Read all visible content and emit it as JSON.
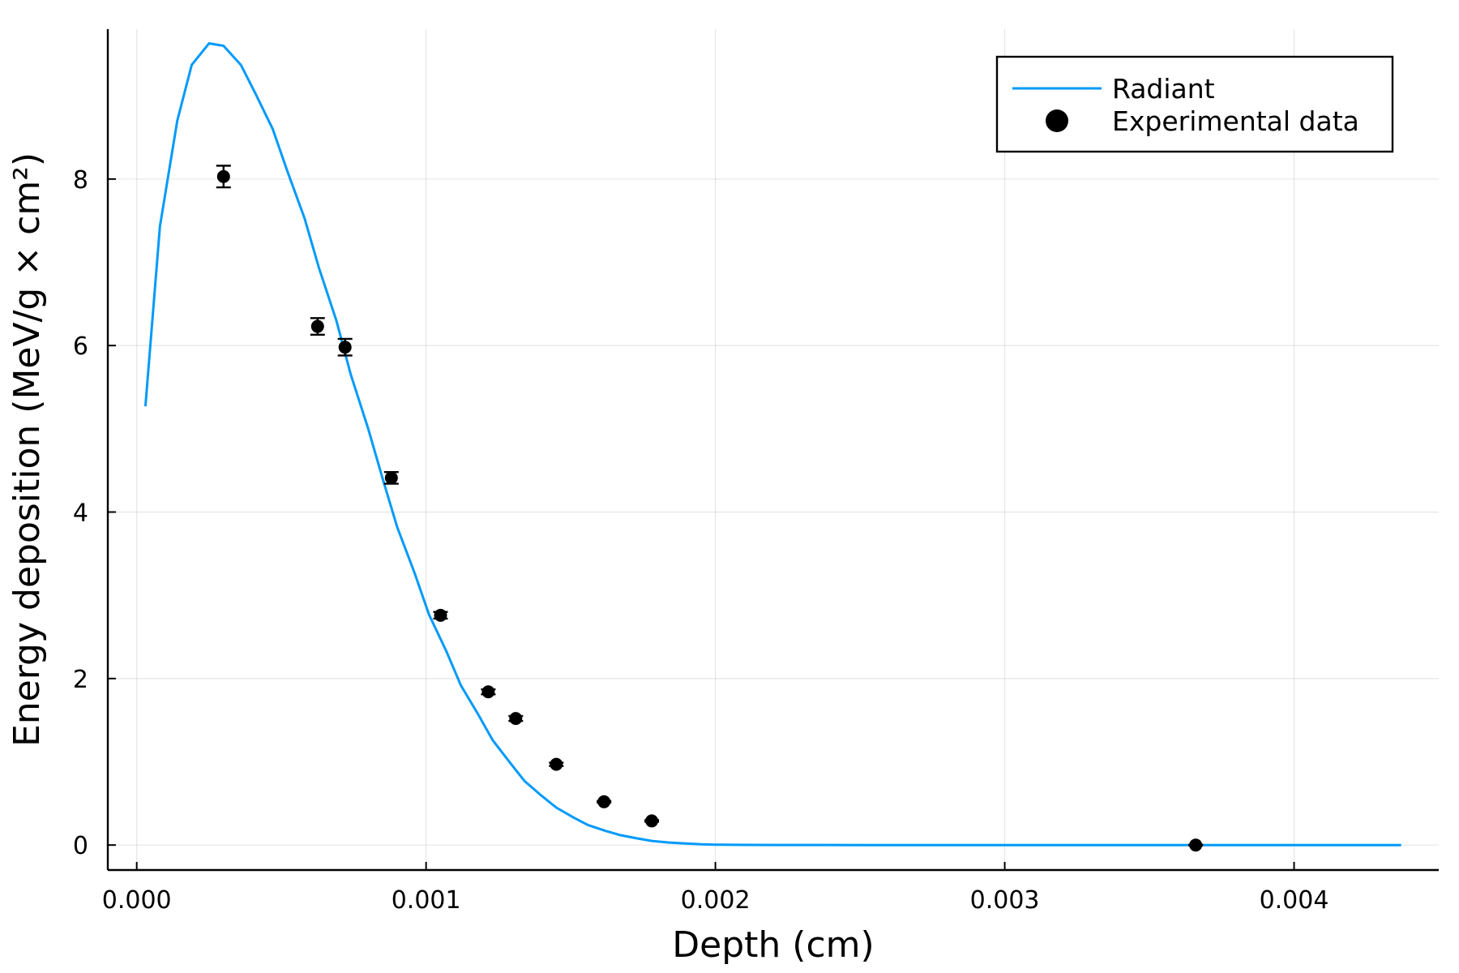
{
  "chart_data": {
    "type": "line",
    "title": "",
    "xlabel": "Depth (cm)",
    "ylabel": "Energy deposition (MeV/g × cm²)",
    "xlim": [
      -0.0001,
      0.0045
    ],
    "ylim": [
      -0.3,
      9.8
    ],
    "xticks": [
      {
        "value": 0.0,
        "label": "0.000"
      },
      {
        "value": 0.001,
        "label": "0.001"
      },
      {
        "value": 0.002,
        "label": "0.002"
      },
      {
        "value": 0.003,
        "label": "0.003"
      },
      {
        "value": 0.004,
        "label": "0.004"
      }
    ],
    "yticks": [
      {
        "value": 0,
        "label": "0"
      },
      {
        "value": 2,
        "label": "2"
      },
      {
        "value": 4,
        "label": "4"
      },
      {
        "value": 6,
        "label": "6"
      },
      {
        "value": 8,
        "label": "8"
      }
    ],
    "grid": true,
    "legend_position": "top-right",
    "series": [
      {
        "name": "Radiant",
        "kind": "line",
        "color": "#009AFA",
        "x": [
          3e-05,
          8e-05,
          0.00014,
          0.00019,
          0.00025,
          0.0003,
          0.00036,
          0.00041,
          0.00047,
          0.00052,
          0.00058,
          0.00063,
          0.00069,
          0.00074,
          0.0008,
          0.00085,
          0.0009,
          0.00096,
          0.00101,
          0.00107,
          0.00112,
          0.00118,
          0.00123,
          0.00129,
          0.00134,
          0.0014,
          0.00145,
          0.00151,
          0.00156,
          0.00162,
          0.00167,
          0.00173,
          0.00178,
          0.00184,
          0.00189,
          0.00195,
          0.002,
          0.0021,
          0.0022,
          0.0025,
          0.003,
          0.0035,
          0.004,
          0.00437
        ],
        "y": [
          5.27,
          7.43,
          8.7,
          9.37,
          9.63,
          9.6,
          9.37,
          9.03,
          8.6,
          8.1,
          7.53,
          6.93,
          6.3,
          5.65,
          5.0,
          4.4,
          3.82,
          3.27,
          2.77,
          2.33,
          1.92,
          1.57,
          1.26,
          0.99,
          0.77,
          0.59,
          0.45,
          0.33,
          0.24,
          0.17,
          0.12,
          0.08,
          0.05,
          0.03,
          0.02,
          0.01,
          0.005,
          0.002,
          0.001,
          0.0,
          0.0,
          0.0,
          0.0,
          0.0
        ]
      },
      {
        "name": "Experimental data",
        "kind": "scatter",
        "color": "#000000",
        "x": [
          0.0003,
          0.000625,
          0.00072,
          0.00088,
          0.00105,
          0.001215,
          0.00131,
          0.00145,
          0.001615,
          0.00178,
          0.00366
        ],
        "y": [
          8.03,
          6.23,
          5.98,
          4.41,
          2.76,
          1.84,
          1.52,
          0.97,
          0.52,
          0.29,
          0.0
        ],
        "err": [
          0.13,
          0.1,
          0.1,
          0.07,
          0.04,
          0.03,
          0.03,
          0.02,
          0.01,
          0.01,
          0.005
        ]
      }
    ]
  }
}
